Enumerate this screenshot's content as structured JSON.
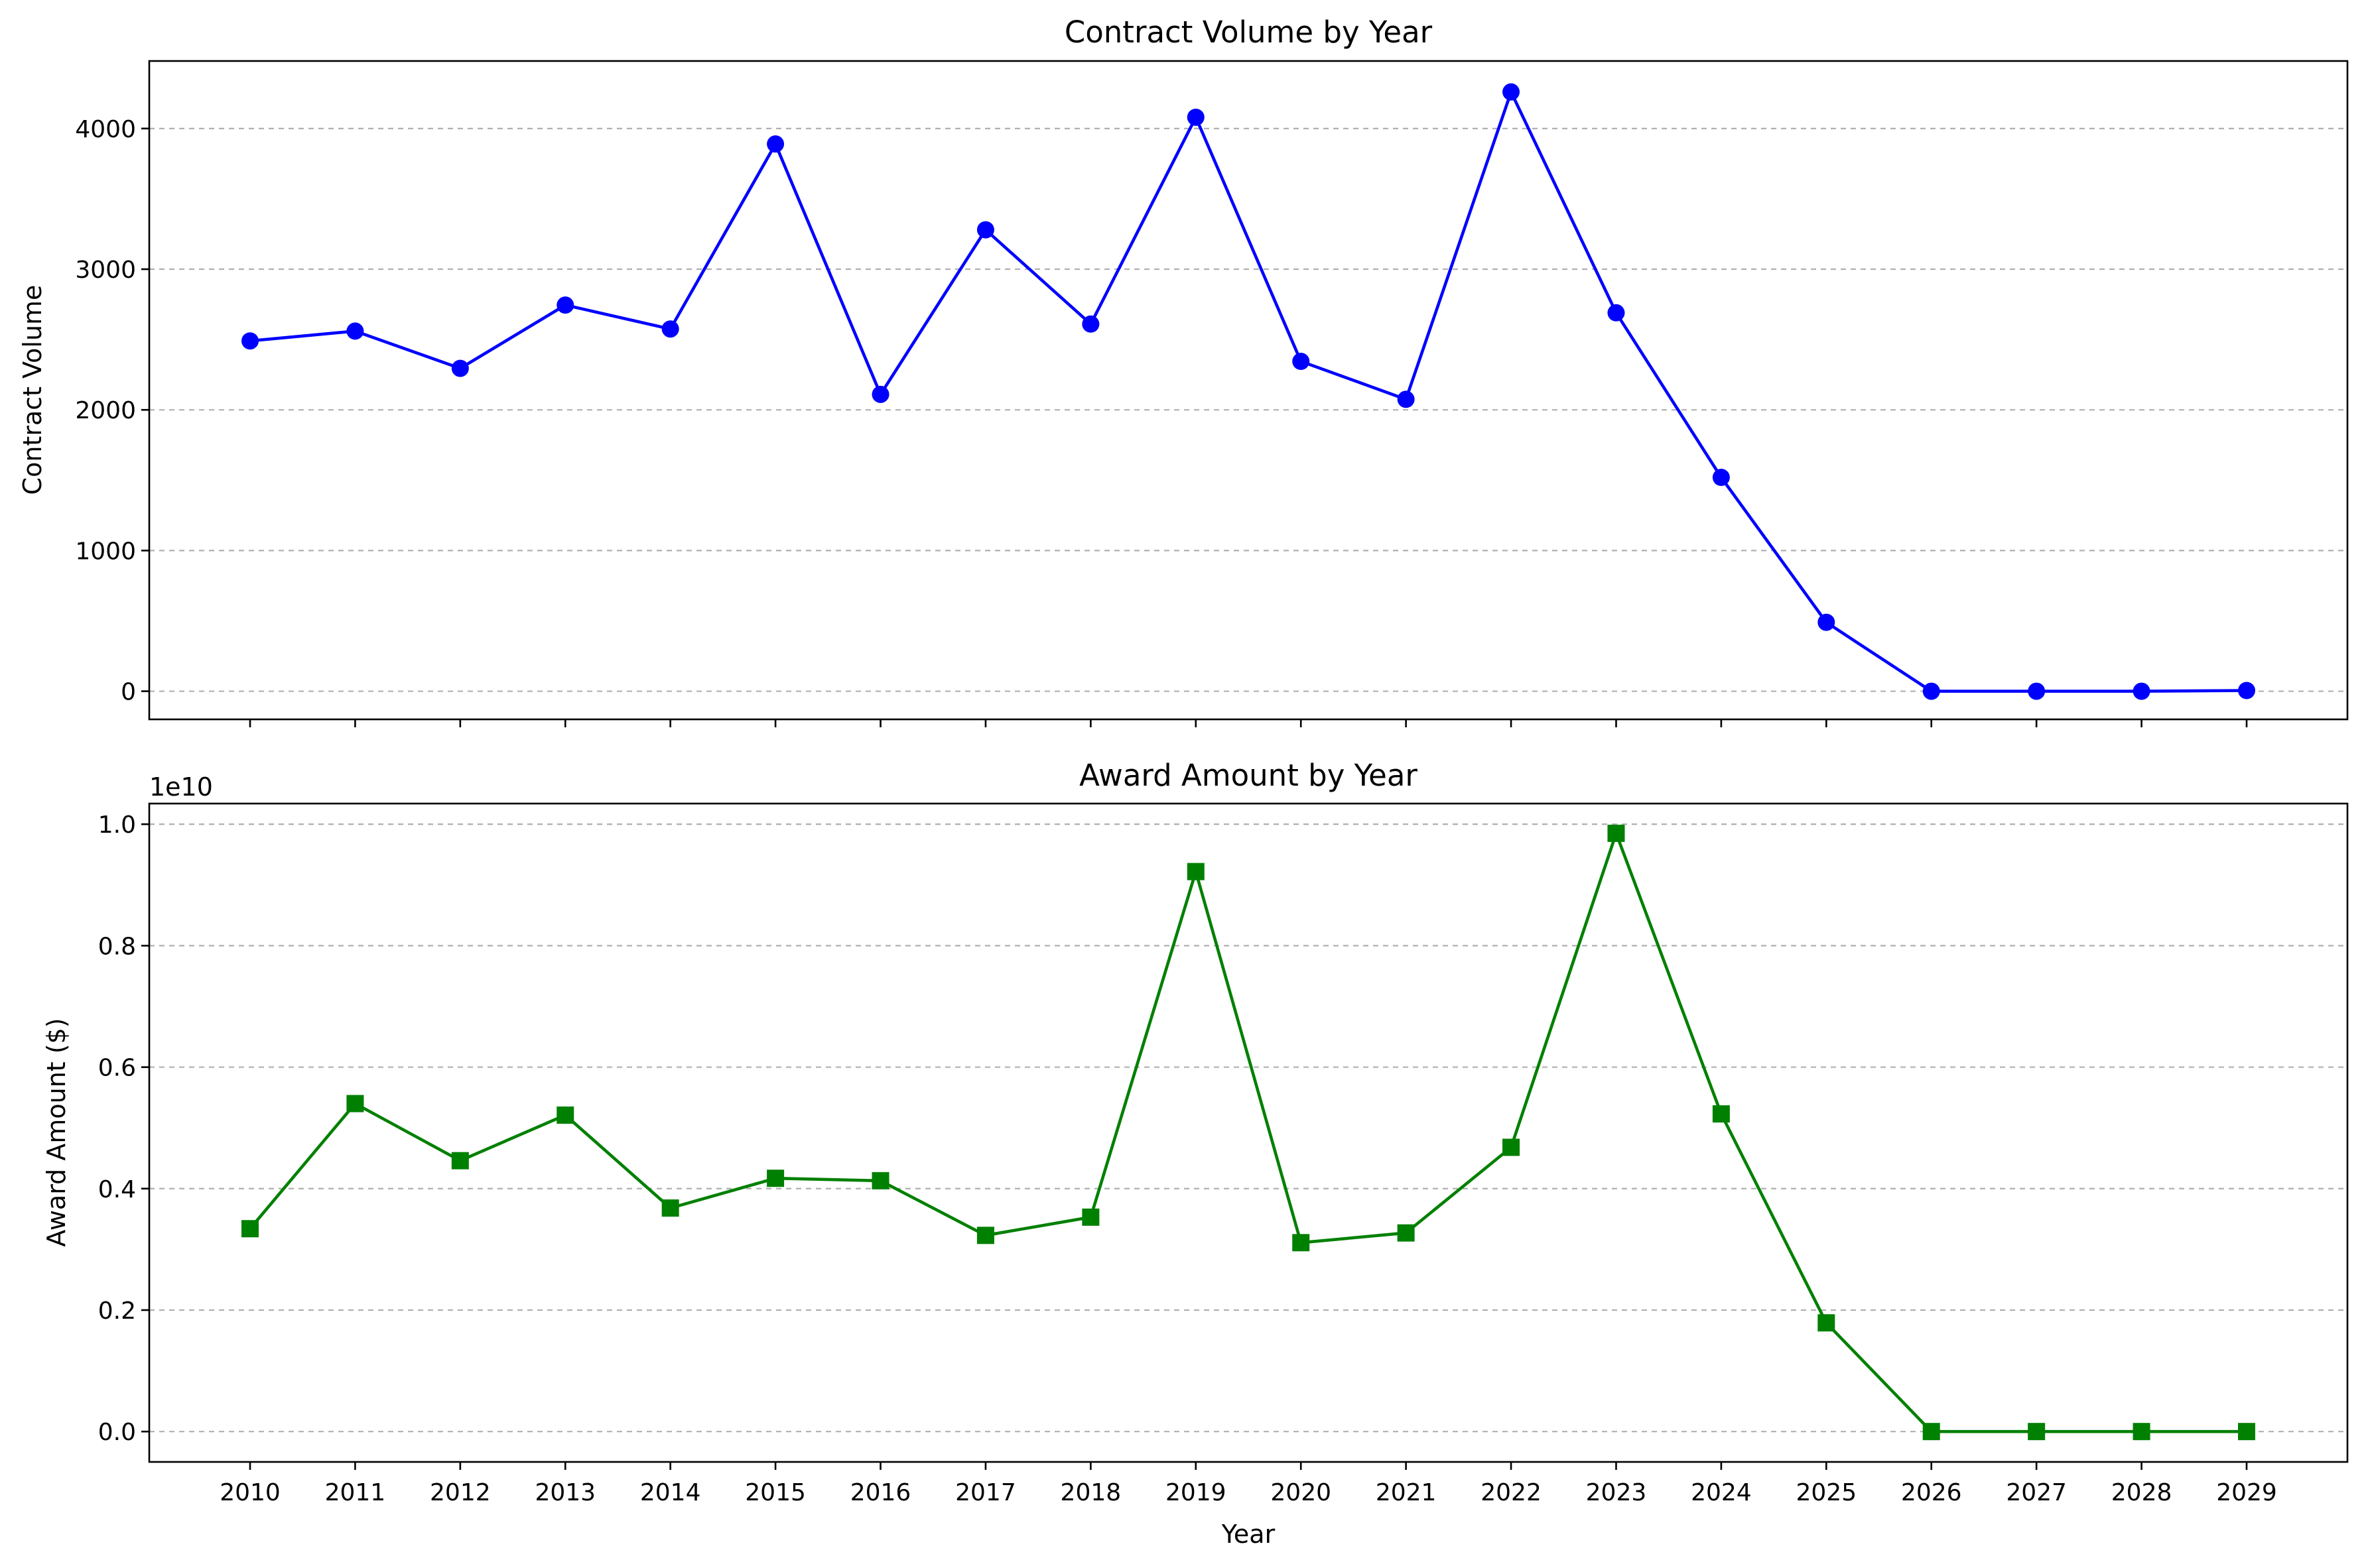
{
  "chart_data": [
    {
      "type": "line",
      "title": "Contract Volume by Year",
      "xlabel": "",
      "ylabel": "Contract Volume",
      "x": [
        2010,
        2011,
        2012,
        2013,
        2014,
        2015,
        2016,
        2017,
        2018,
        2019,
        2020,
        2021,
        2022,
        2023,
        2024,
        2025,
        2026,
        2027,
        2028,
        2029
      ],
      "x_tick_labels_visible": false,
      "series": [
        {
          "values": [
            2490,
            2560,
            2295,
            2745,
            2575,
            3890,
            2110,
            3280,
            2610,
            4080,
            2345,
            2075,
            4260,
            2690,
            1520,
            490,
            0,
            0,
            0,
            5
          ],
          "color": "#0000ff",
          "marker": "circle"
        }
      ],
      "ylim": [
        -200,
        4480
      ],
      "y_ticks": [
        0,
        1000,
        2000,
        3000,
        4000
      ],
      "y_tick_labels": [
        "0",
        "1000",
        "2000",
        "3000",
        "4000"
      ],
      "grid": "y-dashed",
      "legend": "none"
    },
    {
      "type": "line",
      "title": "Award Amount by Year",
      "xlabel": "Year",
      "ylabel": "Award Amount ($)",
      "y_offset_label": "1e10",
      "x": [
        2010,
        2011,
        2012,
        2013,
        2014,
        2015,
        2016,
        2017,
        2018,
        2019,
        2020,
        2021,
        2022,
        2023,
        2024,
        2025,
        2026,
        2027,
        2028,
        2029
      ],
      "x_tick_labels": [
        "2010",
        "2011",
        "2012",
        "2013",
        "2014",
        "2015",
        "2016",
        "2017",
        "2018",
        "2019",
        "2020",
        "2021",
        "2022",
        "2023",
        "2024",
        "2025",
        "2026",
        "2027",
        "2028",
        "2029"
      ],
      "series": [
        {
          "values": [
            0.334,
            0.54,
            0.446,
            0.521,
            0.368,
            0.417,
            0.413,
            0.323,
            0.353,
            0.922,
            0.311,
            0.327,
            0.468,
            0.985,
            0.523,
            0.179,
            0.0,
            0.0,
            0.0,
            0.0
          ],
          "color": "#008000",
          "marker": "square"
        }
      ],
      "ylim": [
        -0.05,
        1.034
      ],
      "y_ticks": [
        0.0,
        0.2,
        0.4,
        0.6,
        0.8,
        1.0
      ],
      "y_tick_labels": [
        "0.0",
        "0.2",
        "0.4",
        "0.6",
        "0.8",
        "1.0"
      ],
      "grid": "y-dashed",
      "legend": "none"
    }
  ]
}
